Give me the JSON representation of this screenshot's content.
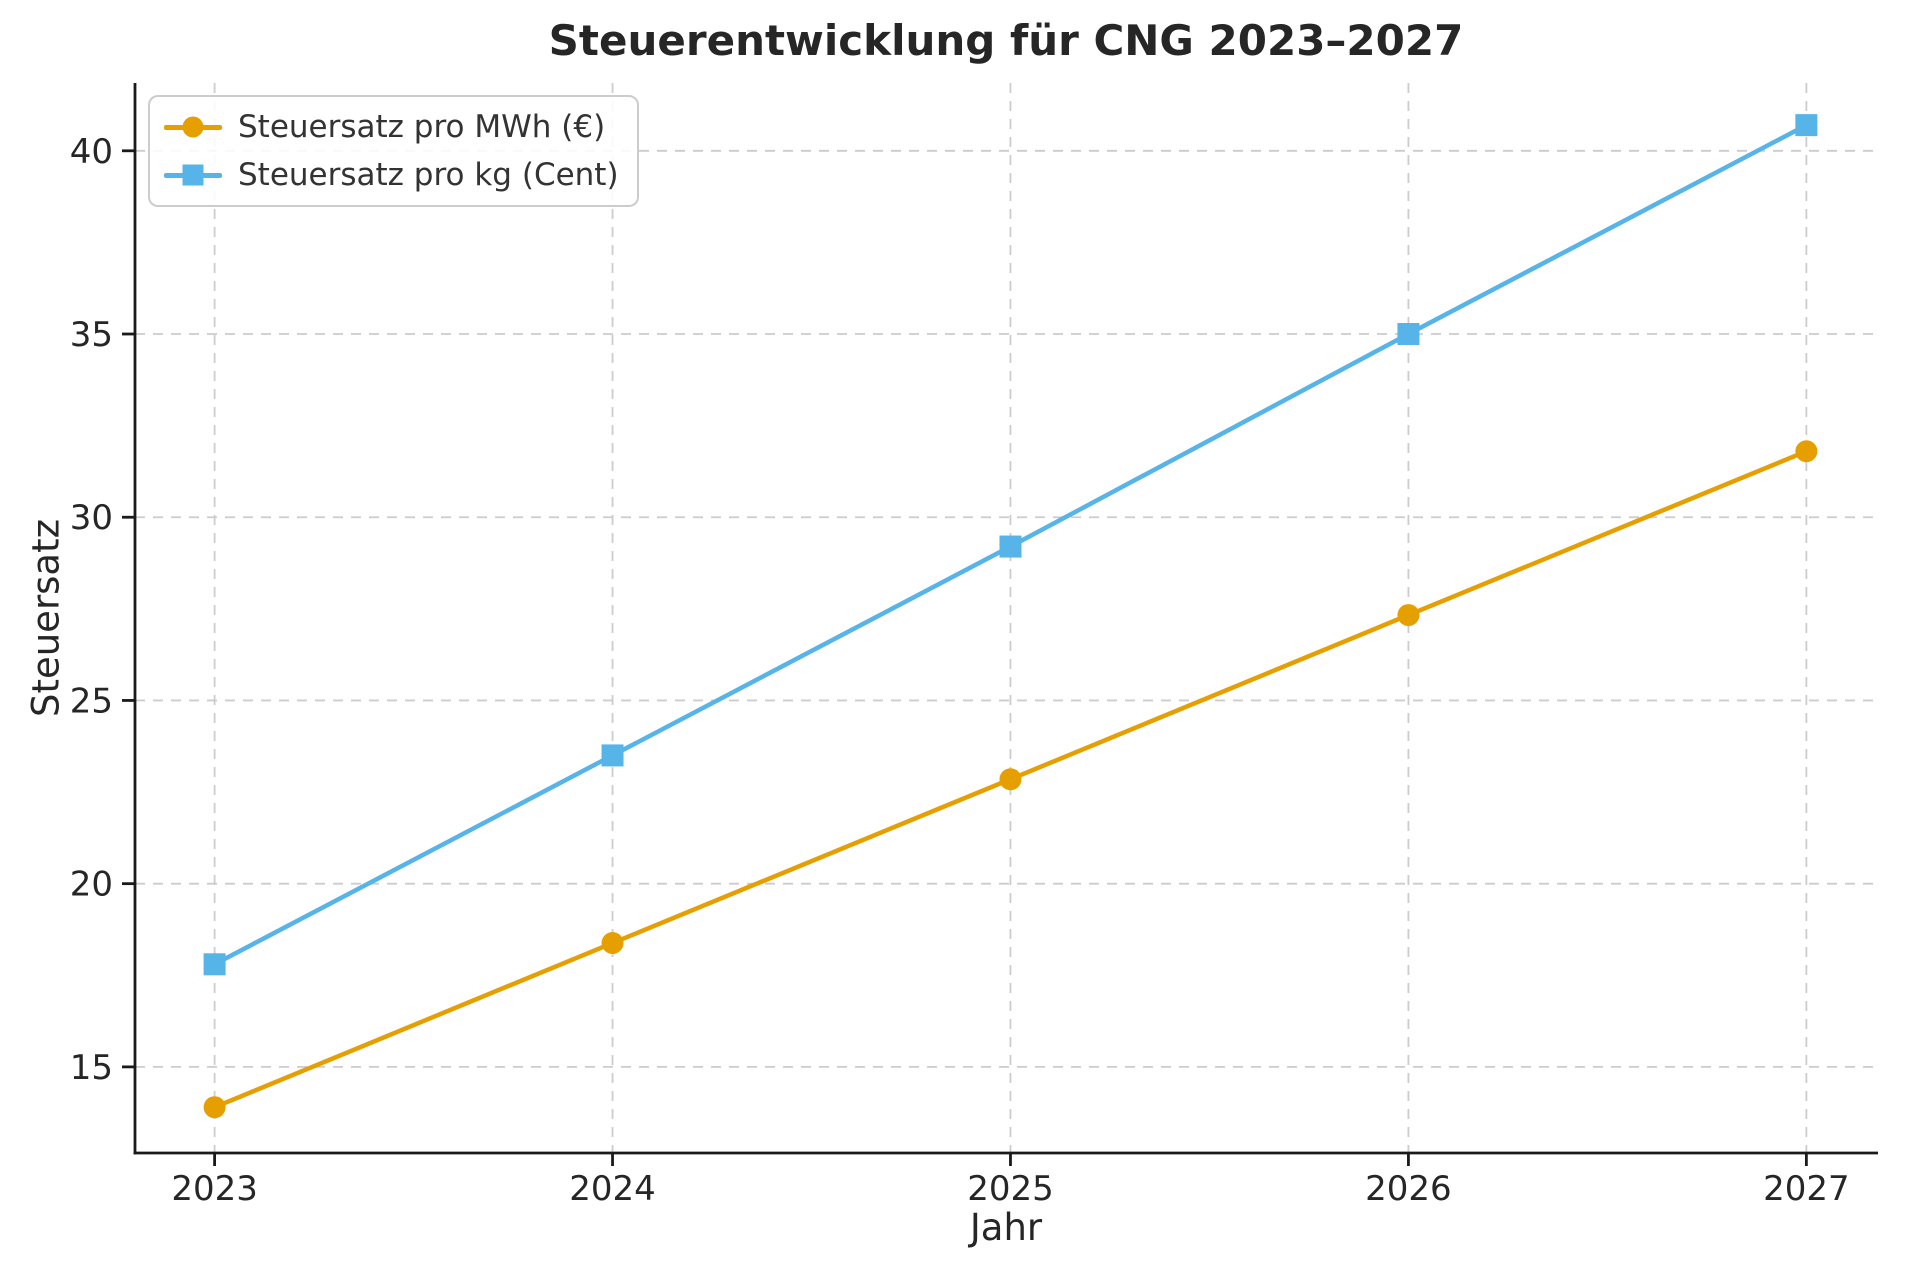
{
  "title": "Steuerentwicklung für CNG 2023–2027",
  "chart_data": {
    "type": "line",
    "x": [
      2023,
      2024,
      2025,
      2026,
      2027
    ],
    "series": [
      {
        "name": "Steuersatz pro MWh (€)",
        "color": "#E69F00",
        "marker": "circle",
        "values": [
          13.9,
          18.38,
          22.85,
          27.33,
          31.8
        ]
      },
      {
        "name": "Steuersatz pro kg (Cent)",
        "color": "#56B4E9",
        "marker": "square",
        "values": [
          17.8,
          23.5,
          29.2,
          35.0,
          40.7
        ]
      }
    ],
    "xlabel": "Jahr",
    "ylabel": "Steuersatz",
    "xticks": [
      2023,
      2024,
      2025,
      2026,
      2027
    ],
    "yticks": [
      15,
      20,
      25,
      30,
      35,
      40
    ],
    "xlim": [
      2022.8,
      2027.18
    ],
    "ylim": [
      12.65,
      41.85
    ],
    "grid": true,
    "grid_style": "dashed",
    "legend_position": "upper left"
  },
  "colors": {
    "grid": "#cccccc",
    "spine": "#1a1a1a",
    "tick_label": "#262626",
    "title": "#262626",
    "legend_text": "#333333",
    "background": "#ffffff"
  }
}
